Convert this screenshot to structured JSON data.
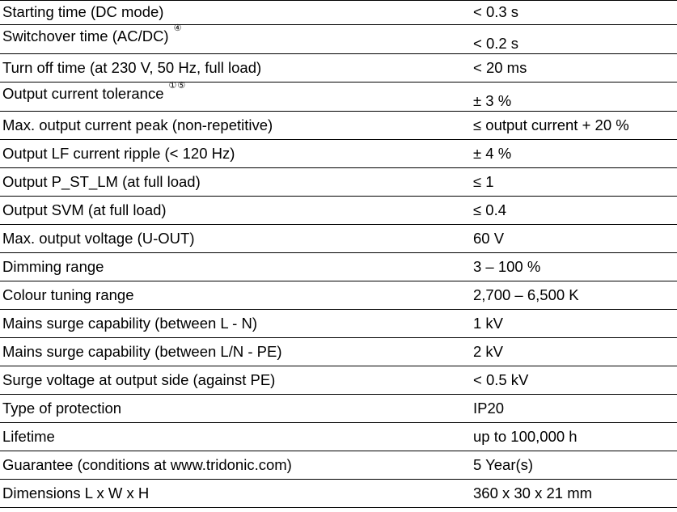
{
  "rows": [
    {
      "label": "Starting time (DC mode)",
      "note": "",
      "value": "< 0.3 s"
    },
    {
      "label": "Switchover time (AC/DC)",
      "note": "④",
      "value": "< 0.2 s"
    },
    {
      "label": "Turn off time (at 230 V, 50 Hz, full load)",
      "note": "",
      "value": "< 20 ms"
    },
    {
      "label": "Output current tolerance",
      "note": "①⑤",
      "value": "± 3 %"
    },
    {
      "label": "Max. output current peak (non-repetitive)",
      "note": "",
      "value": "≤ output current + 20 %"
    },
    {
      "label": "Output LF current ripple (< 120 Hz)",
      "note": "",
      "value": "± 4 %"
    },
    {
      "label": "Output P_ST_LM (at full load)",
      "note": "",
      "value": "≤ 1"
    },
    {
      "label": "Output SVM (at full load)",
      "note": "",
      "value": "≤ 0.4"
    },
    {
      "label": "Max. output voltage (U-OUT)",
      "note": "",
      "value": "60 V"
    },
    {
      "label": "Dimming range",
      "note": "",
      "value": "3 – 100 %"
    },
    {
      "label": "Colour tuning range",
      "note": "",
      "value": "2,700 – 6,500 K"
    },
    {
      "label": "Mains surge capability (between L - N)",
      "note": "",
      "value": "1 kV"
    },
    {
      "label": "Mains surge capability (between L/N - PE)",
      "note": "",
      "value": "2 kV"
    },
    {
      "label": "Surge voltage at output side (against PE)",
      "note": "",
      "value": "< 0.5 kV"
    },
    {
      "label": "Type of protection",
      "note": "",
      "value": "IP20"
    },
    {
      "label": "Lifetime",
      "note": "",
      "value": "up to 100,000 h"
    },
    {
      "label": "Guarantee (conditions at www.tridonic.com)",
      "note": "",
      "value": "5 Year(s)"
    },
    {
      "label": "Dimensions L x W x H",
      "note": "",
      "value": "360 x 30 x 21 mm"
    }
  ]
}
